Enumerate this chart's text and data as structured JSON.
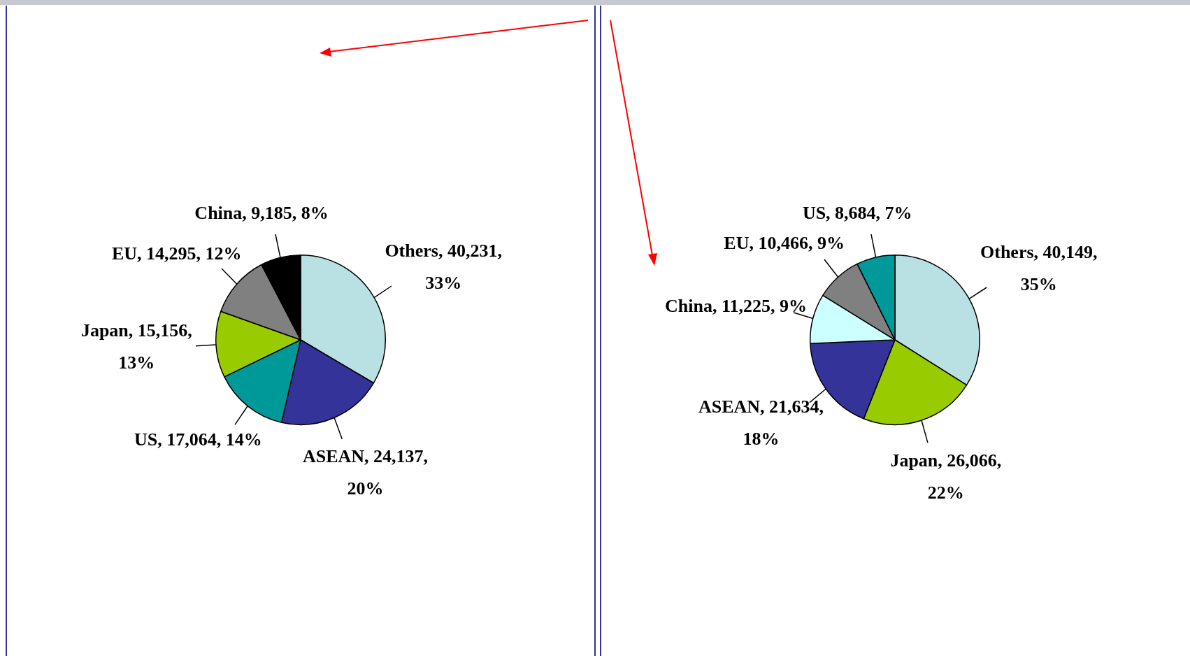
{
  "chart_data": [
    {
      "type": "pie",
      "categories": [
        "Others",
        "ASEAN",
        "US",
        "Japan",
        "EU",
        "China"
      ],
      "values": [
        40231,
        24137,
        17064,
        15156,
        14295,
        9185
      ],
      "colors": [
        "#b9e0e3",
        "#333399",
        "#009999",
        "#99cc00",
        "#808080",
        "#000000"
      ],
      "value_labels": [
        "40,231, 33%",
        "24,137, 20%",
        "17,064, 14%",
        "15,156, 13%",
        "14,295, 12%",
        "9,185, 8%"
      ],
      "legend": false
    },
    {
      "type": "pie",
      "categories": [
        "Others",
        "Japan",
        "ASEAN",
        "China",
        "EU",
        "US"
      ],
      "values": [
        40149,
        26066,
        21634,
        11225,
        10466,
        8684
      ],
      "colors": [
        "#b9e0e3",
        "#99cc00",
        "#333399",
        "#ccffff",
        "#808080",
        "#009999"
      ],
      "value_labels": [
        "40,149, 35%",
        "26,066, 22%",
        "21,634, 18%",
        "11,225, 9%",
        "10,466, 9%",
        "8,684, 7%"
      ],
      "legend": false
    }
  ]
}
